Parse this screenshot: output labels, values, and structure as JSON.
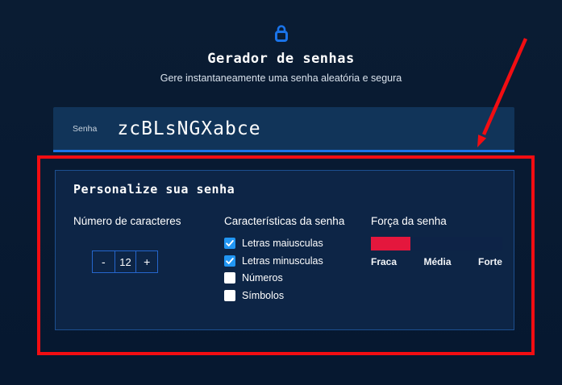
{
  "colors": {
    "page-bg": "#0a1c33",
    "bar-bg": "#113459",
    "card-bg": "#0d2546",
    "card-border": "#1d4f8f",
    "accent-blue": "#1a73e8",
    "checkbox-blue": "#2196f3",
    "stepper-border": "#2566cc",
    "annotation-red": "#f20d12",
    "strength-red": "#e4173d",
    "strength-track": "#0d2347"
  },
  "header": {
    "lock_icon": "lock-icon",
    "title": "Gerador de senhas",
    "subtitle": "Gere instantaneamente uma senha aleatória e segura"
  },
  "password": {
    "label": "Senha",
    "value": "zcBLsNGXabce"
  },
  "card": {
    "title": "Personalize sua senha",
    "length": {
      "label": "Número de caracteres",
      "decrement": "-",
      "value": "12",
      "increment": "+"
    },
    "characteristics": {
      "label": "Características da senha",
      "options": [
        {
          "label": "Letras maiusculas",
          "checked": true
        },
        {
          "label": "Letras minusculas",
          "checked": true
        },
        {
          "label": "Números",
          "checked": false
        },
        {
          "label": "Símbolos",
          "checked": false
        }
      ]
    },
    "strength": {
      "label": "Força da senha",
      "percent": 30,
      "scale": [
        "Fraca",
        "Média",
        "Forte"
      ]
    }
  },
  "annotation": {
    "description": "red rectangle and arrow highlighting the customization section"
  }
}
